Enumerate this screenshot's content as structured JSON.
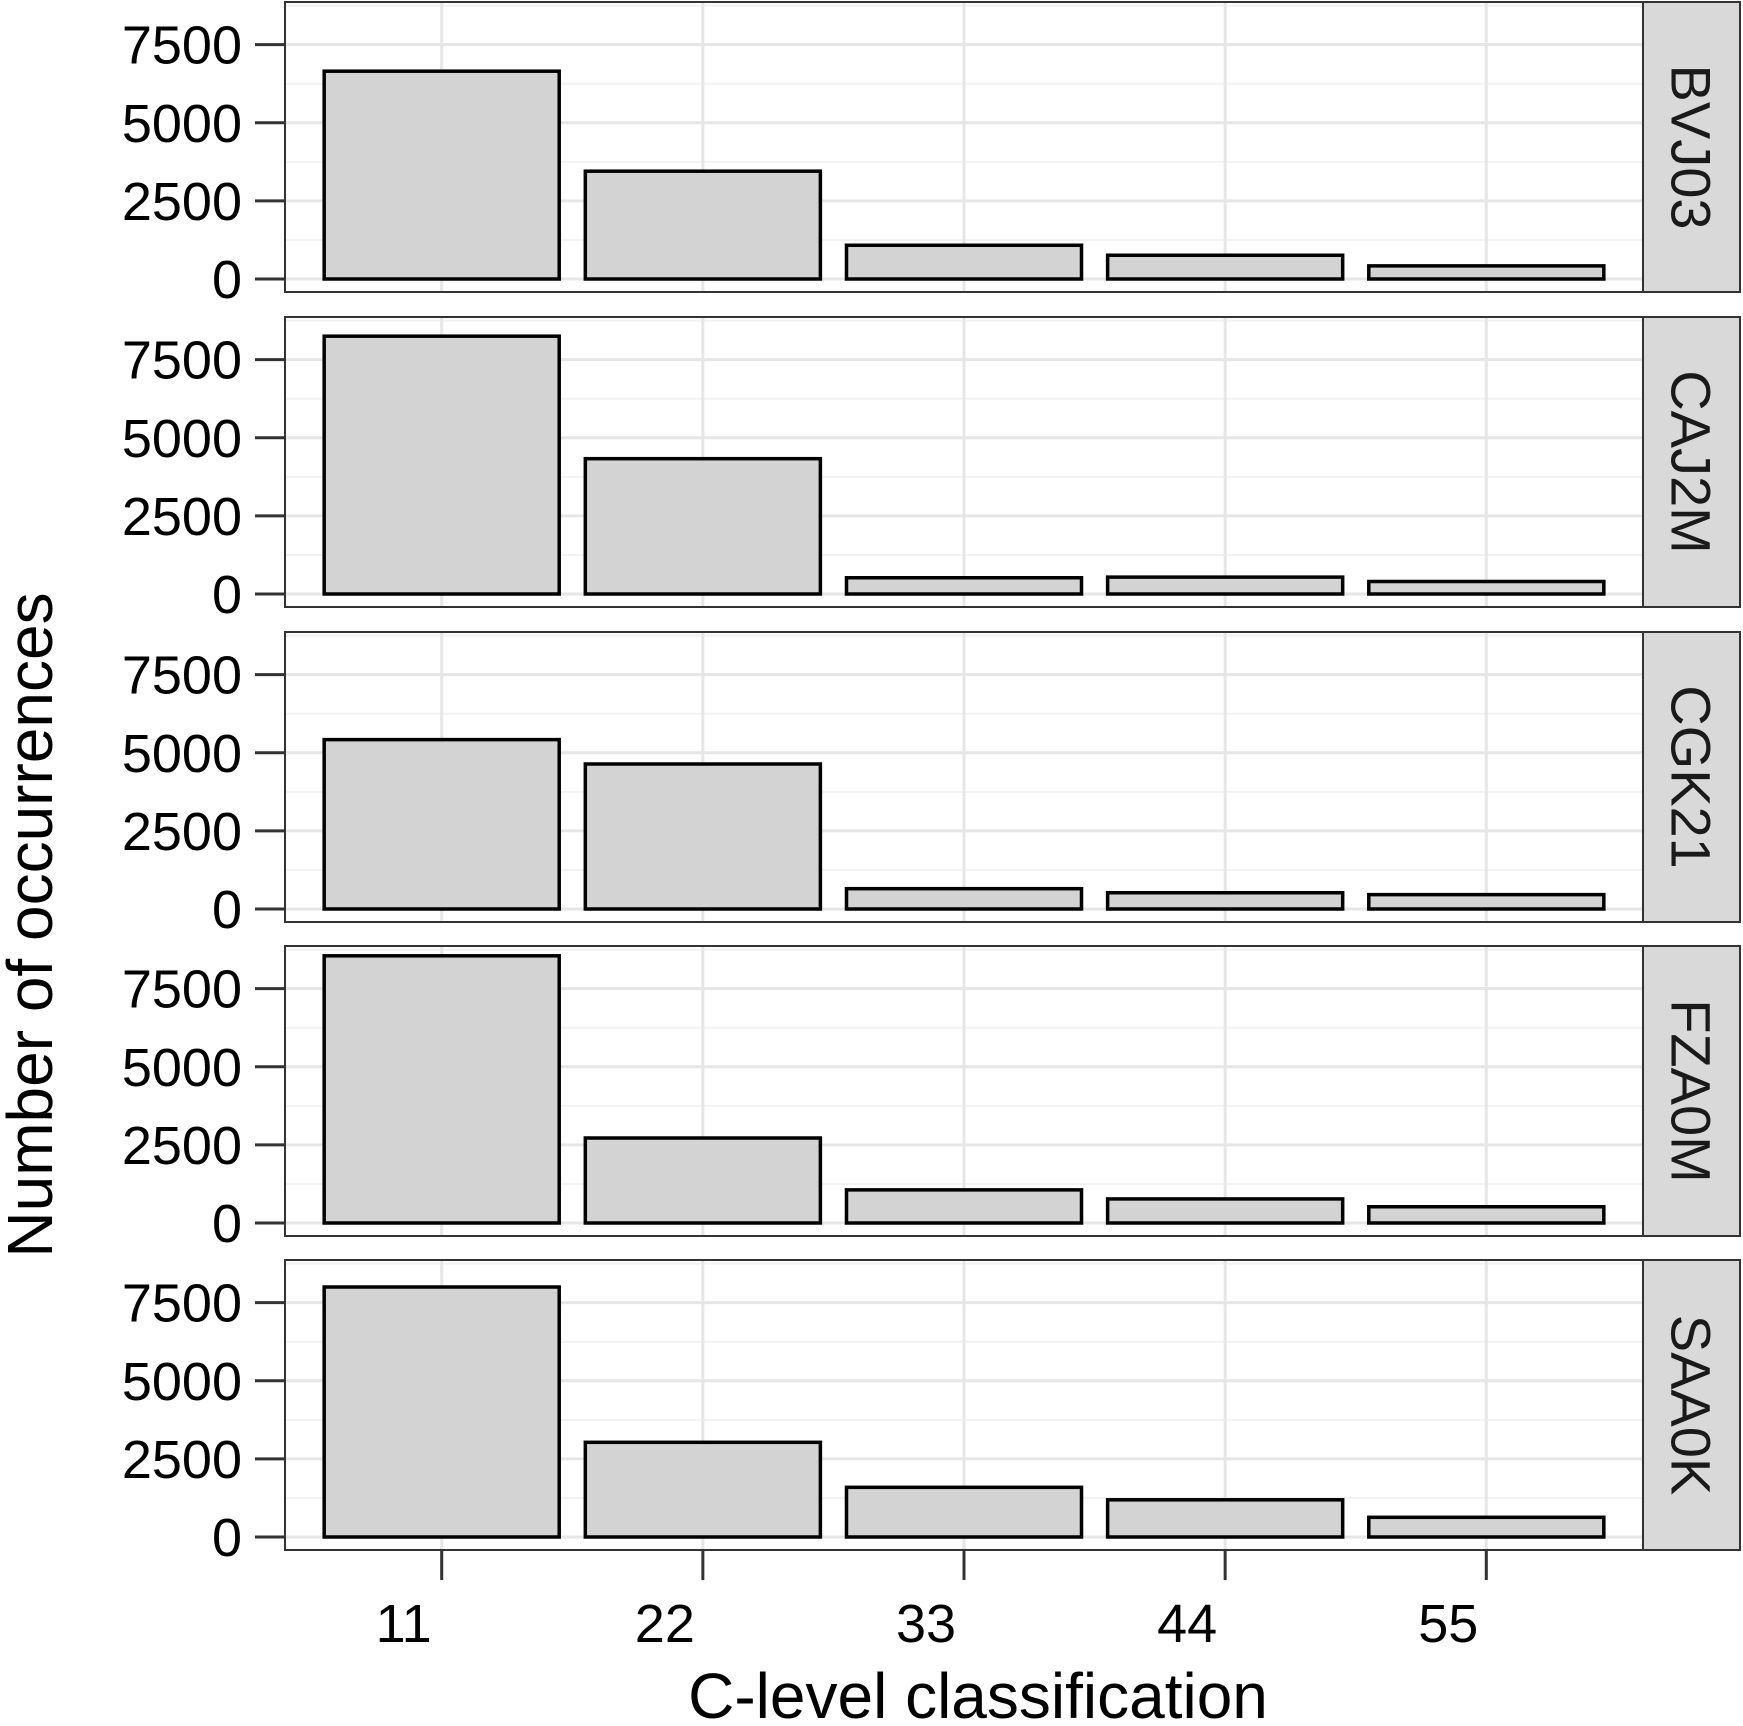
{
  "chart_data": {
    "type": "bar",
    "layout": "faceted-vertical",
    "xlabel": "C-level classification",
    "ylabel": "Number of occurrences",
    "categories": [
      "11",
      "22",
      "33",
      "44",
      "55"
    ],
    "ylim": [
      0,
      8800
    ],
    "yticks": [
      "0",
      "2500",
      "5000",
      "7500"
    ],
    "grid": true,
    "bar_fill": "#d3d3d3",
    "bar_stroke": "#000000",
    "strip_fill": "#d9d9d9",
    "facets": [
      {
        "name": "BVJ03",
        "values": [
          6650,
          3450,
          1080,
          760,
          420
        ]
      },
      {
        "name": "CAJ2M",
        "values": [
          8250,
          4330,
          520,
          540,
          400
        ]
      },
      {
        "name": "CGK21",
        "values": [
          5420,
          4640,
          650,
          520,
          460
        ]
      },
      {
        "name": "FZA0M",
        "values": [
          8550,
          2720,
          1060,
          770,
          520
        ]
      },
      {
        "name": "SAA0K",
        "values": [
          8000,
          3030,
          1590,
          1190,
          630
        ]
      }
    ]
  }
}
